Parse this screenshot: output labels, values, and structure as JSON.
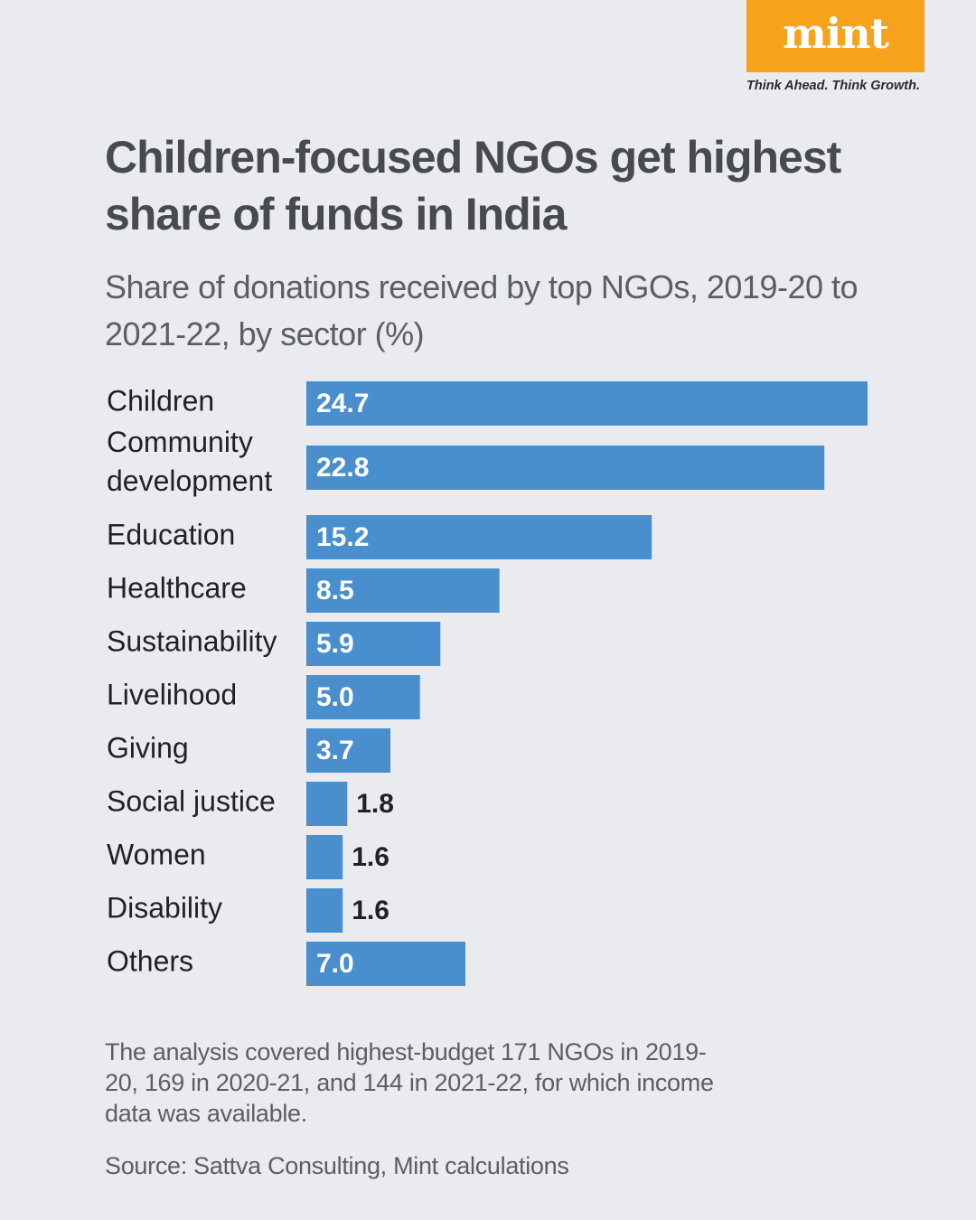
{
  "brand": {
    "logo_text": "mint",
    "tagline": "Think Ahead. Think Growth.",
    "logo_color": "#f7a21b"
  },
  "title": "Children-focused NGOs get highest share of funds in India",
  "subtitle": "Share of donations received by top NGOs, 2019-20 to 2021-22, by sector (%)",
  "note": "The analysis covered highest-budget 171 NGOs in 2019-20, 169 in 2020-21, and 144 in 2021-22, for which income data was available.",
  "source": "Source: Sattva Consulting, Mint calculations",
  "chart_data": {
    "type": "bar",
    "orientation": "horizontal",
    "categories": [
      [
        "Children"
      ],
      [
        "Community",
        "development"
      ],
      [
        "Education"
      ],
      [
        "Healthcare"
      ],
      [
        "Sustainability"
      ],
      [
        "Livelihood"
      ],
      [
        "Giving"
      ],
      [
        "Social justice"
      ],
      [
        "Women"
      ],
      [
        "Disability"
      ],
      [
        "Others"
      ]
    ],
    "values": [
      24.7,
      22.8,
      15.2,
      8.5,
      5.9,
      5.0,
      3.7,
      1.8,
      1.6,
      1.6,
      7.0
    ],
    "value_labels": [
      "24.7",
      "22.8",
      "15.2",
      "8.5",
      "5.9",
      "5.0",
      "3.7",
      "1.8",
      "1.6",
      "1.6",
      "7.0"
    ],
    "bar_color": "#4a8fcd",
    "grid": false,
    "legend": "none"
  }
}
